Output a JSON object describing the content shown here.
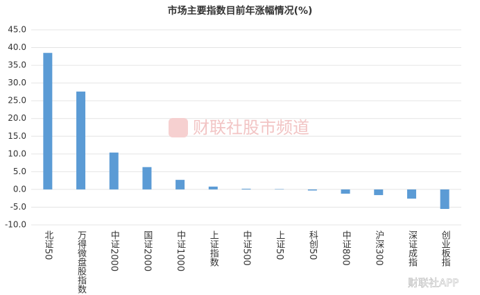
{
  "chart_data": {
    "type": "bar",
    "title": "市场主要指数目前年涨幅情况(%)",
    "categories": [
      "北证50",
      "万得微盘股指数",
      "中证2000",
      "国证2000",
      "中证1000",
      "上证指数",
      "中证500",
      "上证50",
      "科创50",
      "中证800",
      "沪深300",
      "深证成指",
      "创业板指"
    ],
    "values": [
      38.5,
      27.6,
      10.4,
      6.3,
      2.7,
      0.8,
      0.2,
      0.1,
      -0.3,
      -1.2,
      -1.6,
      -2.6,
      -5.5
    ],
    "color": "#5b9bd5",
    "ylim": [
      -10,
      45
    ],
    "yticks": [
      {
        "value": -10,
        "label": "-10.0"
      },
      {
        "value": -5,
        "label": "-5.0"
      },
      {
        "value": 0,
        "label": "0.0"
      },
      {
        "value": 5,
        "label": "5.0"
      },
      {
        "value": 10,
        "label": "10.0"
      },
      {
        "value": 15,
        "label": "15.0"
      },
      {
        "value": 20,
        "label": "20.0"
      },
      {
        "value": 25,
        "label": "25.0"
      },
      {
        "value": 30,
        "label": "30.0"
      },
      {
        "value": 35,
        "label": "35.0"
      },
      {
        "value": 40,
        "label": "40.0"
      },
      {
        "value": 45,
        "label": "45.0"
      }
    ],
    "grid": true,
    "watermark": "财联社股市频道",
    "source_watermark": "财联社APP"
  }
}
